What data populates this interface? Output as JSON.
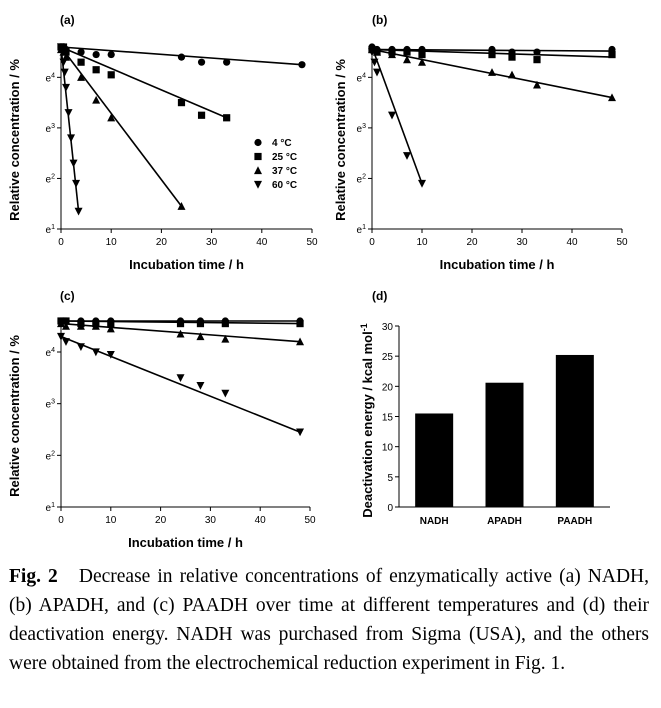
{
  "caption": {
    "label": "Fig. 2",
    "text": "Decrease in relative concentrations of enzymatically active (a) NADH, (b) APADH, and (c) PAADH over time at different temperatures and (d) their deactivation energy. NADH was purchased from Sigma (USA), and the others were obtained from the electrochemical reduction experiment in Fig. 1."
  },
  "chart_data": [
    {
      "panel": "(a)",
      "type": "scatter",
      "title": "(a)",
      "xlabel": "Incubation time / h",
      "ylabel": "Relative concentration / %",
      "xlim": [
        0,
        50
      ],
      "ylim": [
        1,
        4.6
      ],
      "xticks": [
        "0",
        "10",
        "20",
        "30",
        "40",
        "50"
      ],
      "yticks": [
        "e1",
        "e2",
        "e3",
        "e4"
      ],
      "legend": {
        "placement": "right",
        "entries": [
          "4 °C",
          "25 °C",
          "37 °C",
          "60 °C"
        ]
      },
      "series": [
        {
          "name": "4 °C",
          "marker": "circle",
          "x": [
            0,
            0.5,
            1,
            4,
            7,
            10,
            24,
            28,
            33,
            48
          ],
          "y": [
            4.6,
            4.6,
            4.55,
            4.5,
            4.45,
            4.45,
            4.4,
            4.3,
            4.3,
            4.25
          ],
          "fit": [
            [
              0,
              4.6
            ],
            [
              48,
              4.25
            ]
          ]
        },
        {
          "name": "25 °C",
          "marker": "square",
          "x": [
            0,
            0.5,
            1,
            4,
            7,
            10,
            24,
            28,
            33
          ],
          "y": [
            4.6,
            4.6,
            4.5,
            4.3,
            4.15,
            4.05,
            3.5,
            3.25,
            3.2
          ],
          "fit": [
            [
              0,
              4.6
            ],
            [
              33,
              3.2
            ]
          ]
        },
        {
          "name": "37 °C",
          "marker": "triangle-up",
          "x": [
            0,
            0.5,
            1,
            4,
            7,
            10,
            24
          ],
          "y": [
            4.55,
            4.5,
            4.4,
            4.0,
            3.55,
            3.2,
            1.45
          ],
          "fit": [
            [
              0,
              4.6
            ],
            [
              24,
              1.45
            ]
          ]
        },
        {
          "name": "60 °C",
          "marker": "triangle-down",
          "x": [
            0,
            0.25,
            0.5,
            0.75,
            1,
            1.5,
            2,
            2.5,
            3,
            3.5
          ],
          "y": [
            4.6,
            4.5,
            4.3,
            4.1,
            3.8,
            3.3,
            2.8,
            2.3,
            1.9,
            1.35
          ],
          "fit": [
            [
              0,
              4.6
            ],
            [
              3.5,
              1.35
            ]
          ]
        }
      ]
    },
    {
      "panel": "(b)",
      "type": "scatter",
      "title": "(b)",
      "xlabel": "Incubation time / h",
      "ylabel": "Relative concentration / %",
      "xlim": [
        0,
        50
      ],
      "ylim": [
        1,
        4.6
      ],
      "xticks": [
        "0",
        "10",
        "20",
        "30",
        "40",
        "50"
      ],
      "yticks": [
        "e1",
        "e2",
        "e3",
        "e4"
      ],
      "series": [
        {
          "name": "4 °C",
          "marker": "circle",
          "x": [
            0,
            1,
            4,
            7,
            10,
            24,
            28,
            33,
            48
          ],
          "y": [
            4.6,
            4.55,
            4.55,
            4.55,
            4.55,
            4.55,
            4.5,
            4.5,
            4.55
          ],
          "fit": [
            [
              0,
              4.55
            ],
            [
              48,
              4.52
            ]
          ]
        },
        {
          "name": "25 °C",
          "marker": "square",
          "x": [
            0,
            1,
            4,
            7,
            10,
            24,
            28,
            33,
            48
          ],
          "y": [
            4.55,
            4.5,
            4.5,
            4.5,
            4.45,
            4.45,
            4.4,
            4.35,
            4.45
          ],
          "fit": [
            [
              0,
              4.55
            ],
            [
              48,
              4.4
            ]
          ]
        },
        {
          "name": "37 °C",
          "marker": "triangle-up",
          "x": [
            0,
            1,
            4,
            7,
            10,
            24,
            28,
            33,
            48
          ],
          "y": [
            4.55,
            4.5,
            4.45,
            4.35,
            4.3,
            4.1,
            4.05,
            3.85,
            3.6
          ],
          "fit": [
            [
              0,
              4.55
            ],
            [
              48,
              3.6
            ]
          ]
        },
        {
          "name": "60 °C",
          "marker": "triangle-down",
          "x": [
            0,
            0.5,
            1,
            4,
            7,
            10
          ],
          "y": [
            4.5,
            4.3,
            4.1,
            3.25,
            2.45,
            1.9
          ],
          "fit": [
            [
              0,
              4.6
            ],
            [
              10,
              1.9
            ]
          ]
        }
      ]
    },
    {
      "panel": "(c)",
      "type": "scatter",
      "title": "(c)",
      "xlabel": "Incubation time / h",
      "ylabel": "Relative concentration / %",
      "xlim": [
        0,
        50
      ],
      "ylim": [
        1,
        4.6
      ],
      "xticks": [
        "0",
        "10",
        "20",
        "30",
        "40",
        "50"
      ],
      "yticks": [
        "e1",
        "e2",
        "e3",
        "e4"
      ],
      "series": [
        {
          "name": "4 °C",
          "marker": "circle",
          "x": [
            0,
            1,
            4,
            7,
            10,
            24,
            28,
            33,
            48
          ],
          "y": [
            4.6,
            4.6,
            4.6,
            4.6,
            4.6,
            4.6,
            4.6,
            4.6,
            4.6
          ],
          "fit": [
            [
              0,
              4.6
            ],
            [
              48,
              4.6
            ]
          ]
        },
        {
          "name": "25 °C",
          "marker": "square",
          "x": [
            0,
            1,
            4,
            7,
            10,
            24,
            28,
            33,
            48
          ],
          "y": [
            4.6,
            4.6,
            4.55,
            4.55,
            4.55,
            4.55,
            4.55,
            4.55,
            4.55
          ],
          "fit": [
            [
              0,
              4.6
            ],
            [
              48,
              4.55
            ]
          ]
        },
        {
          "name": "37 °C",
          "marker": "triangle-up",
          "x": [
            0,
            1,
            4,
            7,
            10,
            24,
            28,
            33,
            48
          ],
          "y": [
            4.55,
            4.5,
            4.5,
            4.5,
            4.45,
            4.35,
            4.3,
            4.25,
            4.2
          ],
          "fit": [
            [
              0,
              4.55
            ],
            [
              48,
              4.2
            ]
          ]
        },
        {
          "name": "60 °C",
          "marker": "triangle-down",
          "x": [
            0,
            1,
            4,
            7,
            10,
            24,
            28,
            33,
            48
          ],
          "y": [
            4.3,
            4.2,
            4.1,
            4.0,
            3.95,
            3.5,
            3.35,
            3.2,
            2.45
          ],
          "fit": [
            [
              0,
              4.3
            ],
            [
              48,
              2.45
            ]
          ]
        }
      ]
    },
    {
      "panel": "(d)",
      "type": "bar",
      "title": "(d)",
      "xlabel": "",
      "ylabel": "Deactivation energy / kcal mol-1",
      "categories": [
        "NADH",
        "APADH",
        "PAADH"
      ],
      "values": [
        15.5,
        20.6,
        25.2
      ],
      "ylim": [
        0,
        30
      ],
      "yticks": [
        "0",
        "5",
        "10",
        "15",
        "20",
        "25",
        "30"
      ]
    }
  ]
}
